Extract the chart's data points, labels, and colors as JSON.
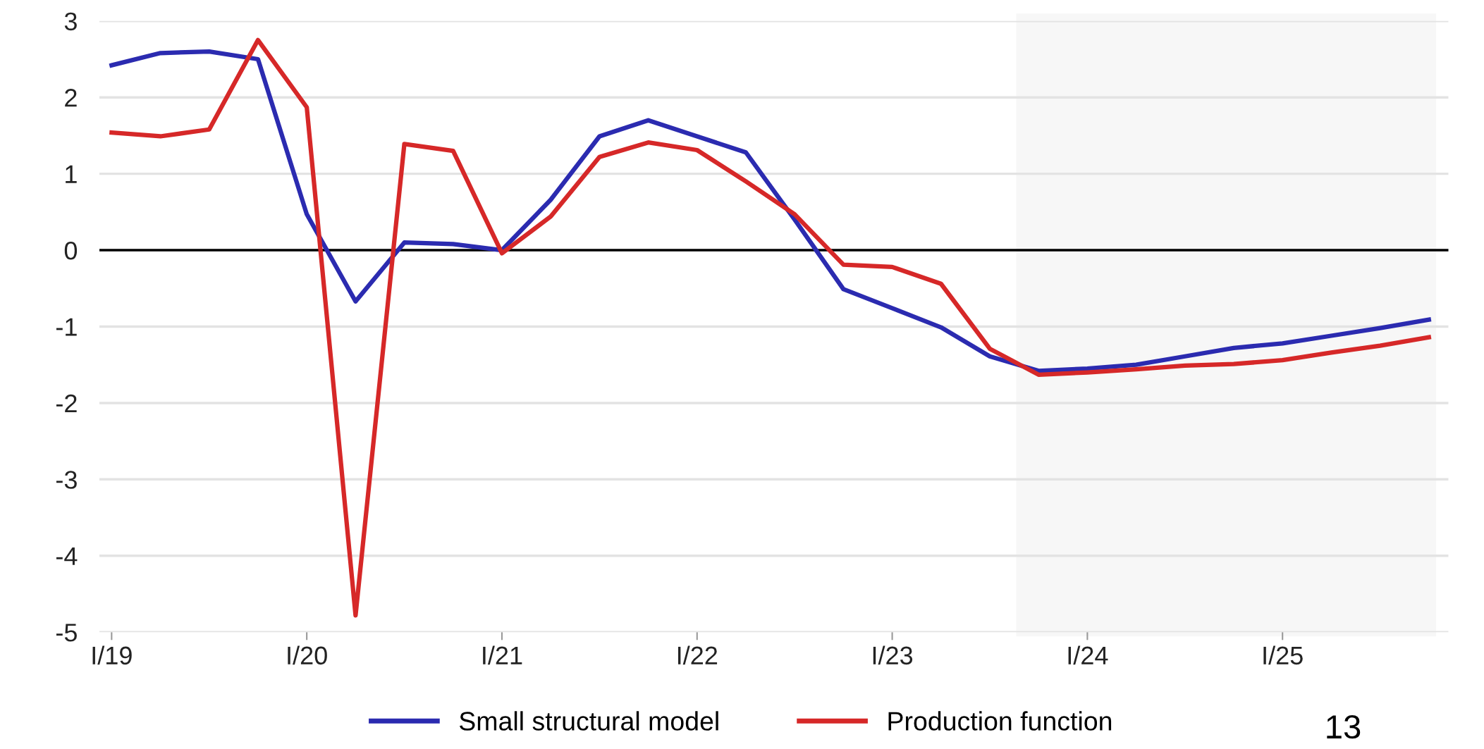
{
  "chart_data": {
    "type": "line",
    "categories": [
      "I/19",
      null,
      null,
      null,
      "I/20",
      null,
      null,
      null,
      "I/21",
      null,
      null,
      null,
      "I/22",
      null,
      null,
      null,
      "I/23",
      null,
      null,
      null,
      "I/24",
      null,
      null,
      null,
      "I/25",
      null,
      null,
      null
    ],
    "series": [
      {
        "name": "Small structural model",
        "color": "#2b2bb0",
        "values": [
          2.42,
          2.58,
          2.6,
          2.5,
          0.47,
          -0.67,
          0.1,
          0.08,
          0.0,
          0.66,
          1.49,
          1.7,
          1.49,
          1.28,
          0.4,
          -0.51,
          -0.76,
          -1.01,
          -1.39,
          -1.58,
          -1.55,
          -1.5,
          -1.39,
          -1.28,
          -1.22,
          -1.12,
          -1.02,
          -0.91
        ]
      },
      {
        "name": "Production function",
        "color": "#d62828",
        "values": [
          1.54,
          1.49,
          1.58,
          2.75,
          1.87,
          -4.78,
          1.39,
          1.3,
          -0.04,
          0.44,
          1.22,
          1.41,
          1.31,
          0.9,
          0.47,
          -0.19,
          -0.22,
          -0.44,
          -1.29,
          -1.63,
          -1.6,
          -1.56,
          -1.51,
          -1.49,
          -1.44,
          -1.34,
          -1.25,
          -1.14
        ]
      }
    ],
    "ylim": [
      -5,
      3
    ],
    "yticks": [
      -5,
      -4,
      -3,
      -2,
      -1,
      0,
      1,
      2,
      3
    ],
    "grid": "y",
    "legend": "bottom",
    "marker": "none",
    "line_style": "solid",
    "ref_lines": [
      {
        "axis": "y",
        "value": 0,
        "label": null,
        "color": "#000000"
      }
    ],
    "annotations": [
      "13"
    ]
  }
}
